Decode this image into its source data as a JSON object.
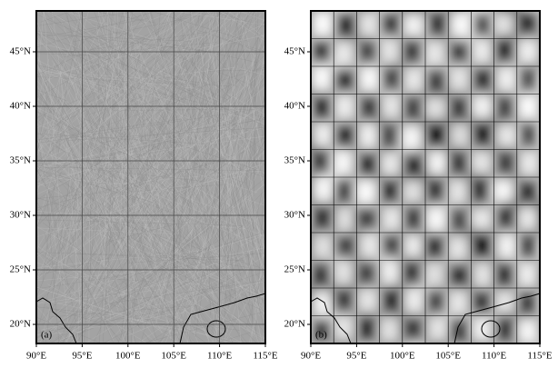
{
  "panels": [
    {
      "label": "(a)",
      "xlim": [
        90,
        115
      ],
      "ylim": [
        18.25,
        48.75
      ],
      "xticks": [
        {
          "value": 90,
          "label": "90°E"
        },
        {
          "value": 95,
          "label": "95°E"
        },
        {
          "value": 100,
          "label": "100°E"
        },
        {
          "value": 105,
          "label": "105°E"
        },
        {
          "value": 110,
          "label": "110°E"
        },
        {
          "value": 115,
          "label": "115°E"
        }
      ],
      "yticks": [
        {
          "value": 20,
          "label": "20°N"
        },
        {
          "value": 25,
          "label": "25°N"
        },
        {
          "value": 30,
          "label": "30°N"
        },
        {
          "value": 35,
          "label": "35°N"
        },
        {
          "value": 40,
          "label": "40°N"
        },
        {
          "value": 45,
          "label": "45°N"
        }
      ]
    },
    {
      "label": "(b)",
      "xlim": [
        90,
        115
      ],
      "ylim": [
        18.25,
        48.75
      ],
      "xticks": [
        {
          "value": 90,
          "label": "90°E"
        },
        {
          "value": 95,
          "label": "95°E"
        },
        {
          "value": 100,
          "label": "100°E"
        },
        {
          "value": 105,
          "label": "105°E"
        },
        {
          "value": 110,
          "label": "110°E"
        },
        {
          "value": 115,
          "label": "115°E"
        }
      ],
      "yticks": [
        {
          "value": 20,
          "label": "20°N"
        },
        {
          "value": 25,
          "label": "25°N"
        },
        {
          "value": 30,
          "label": "30°N"
        },
        {
          "value": 35,
          "label": "35°N"
        },
        {
          "value": 40,
          "label": "40°N"
        },
        {
          "value": 45,
          "label": "45°N"
        }
      ]
    }
  ]
}
